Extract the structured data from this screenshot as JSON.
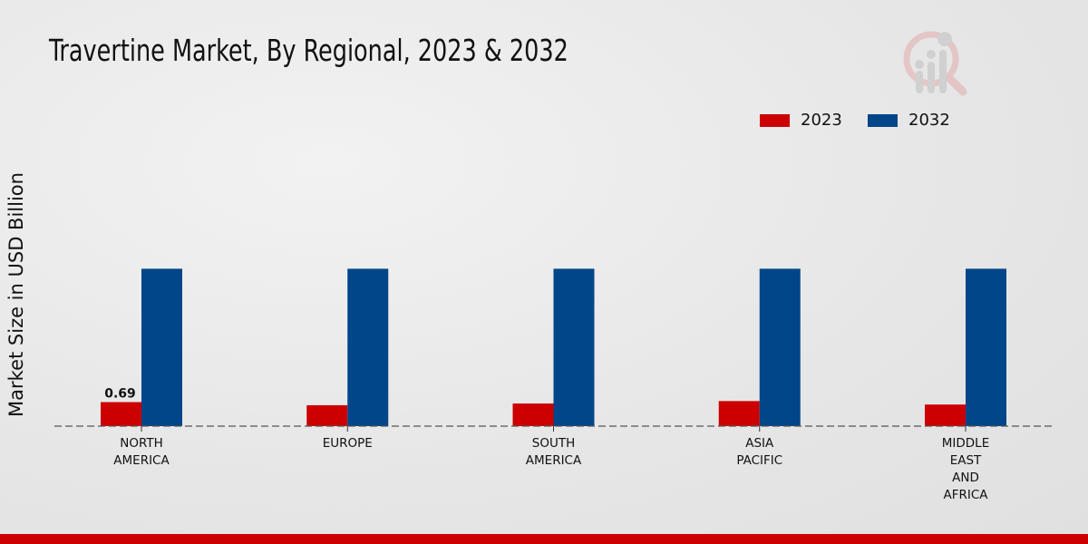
{
  "chart_data": {
    "type": "bar",
    "title": "Travertine Market, By Regional, 2023 & 2032",
    "xlabel": "",
    "ylabel": "Market Size in USD Billion",
    "categories": [
      [
        "NORTH",
        "AMERICA"
      ],
      [
        "EUROPE"
      ],
      [
        "SOUTH",
        "AMERICA"
      ],
      [
        "ASIA",
        "PACIFIC"
      ],
      [
        "MIDDLE",
        "EAST",
        "AND",
        "AFRICA"
      ]
    ],
    "series": [
      {
        "name": "2023",
        "color": "#cc0000",
        "values": [
          0.69,
          0.6,
          0.65,
          0.72,
          0.62
        ]
      },
      {
        "name": "2032",
        "color": "#004689",
        "values": [
          4.52,
          4.52,
          4.52,
          4.52,
          4.52
        ]
      }
    ],
    "data_labels": [
      {
        "series": "2023",
        "category_index": 0,
        "text": "0.69"
      }
    ],
    "ylim": [
      0,
      5.5
    ],
    "grid": false,
    "legend_placement": "top-right"
  }
}
